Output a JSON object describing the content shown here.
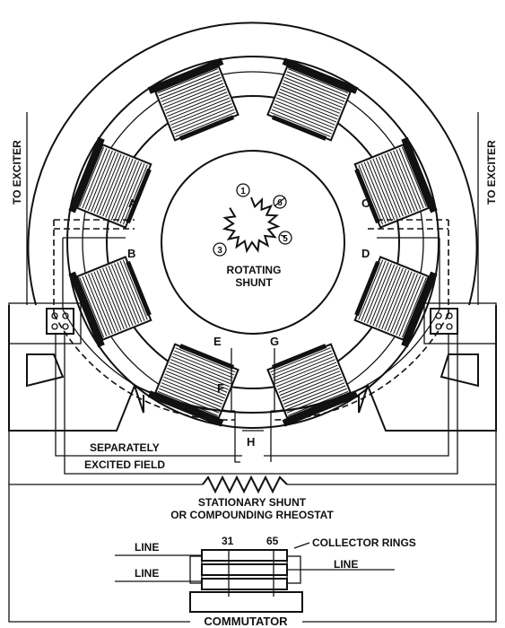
{
  "labels": {
    "to_exciter_left": "TO EXCITER",
    "to_exciter_right": "TO EXCITER",
    "pole_a": "A",
    "pole_b": "B",
    "pole_c": "C",
    "pole_d": "D",
    "pole_e": "E",
    "pole_f": "F",
    "pole_g": "G",
    "pole_h": "H",
    "rotating_shunt_line1": "ROTATING",
    "rotating_shunt_line2": "SHUNT",
    "tap_1": "1",
    "tap_3": "3",
    "tap_5": "5",
    "tap_6": "6",
    "separately_line1": "SEPARATELY",
    "separately_line2": "EXCITED FIELD",
    "stationary_line1": "STATIONARY SHUNT",
    "stationary_line2": "OR COMPOUNDING RHEOSTAT",
    "line_top": "LINE",
    "line_mid": "LINE",
    "line_right": "LINE",
    "ring_31": "31",
    "ring_65": "65",
    "collector_rings": "COLLECTOR RINGS",
    "commutator": "COMMUTATOR"
  }
}
